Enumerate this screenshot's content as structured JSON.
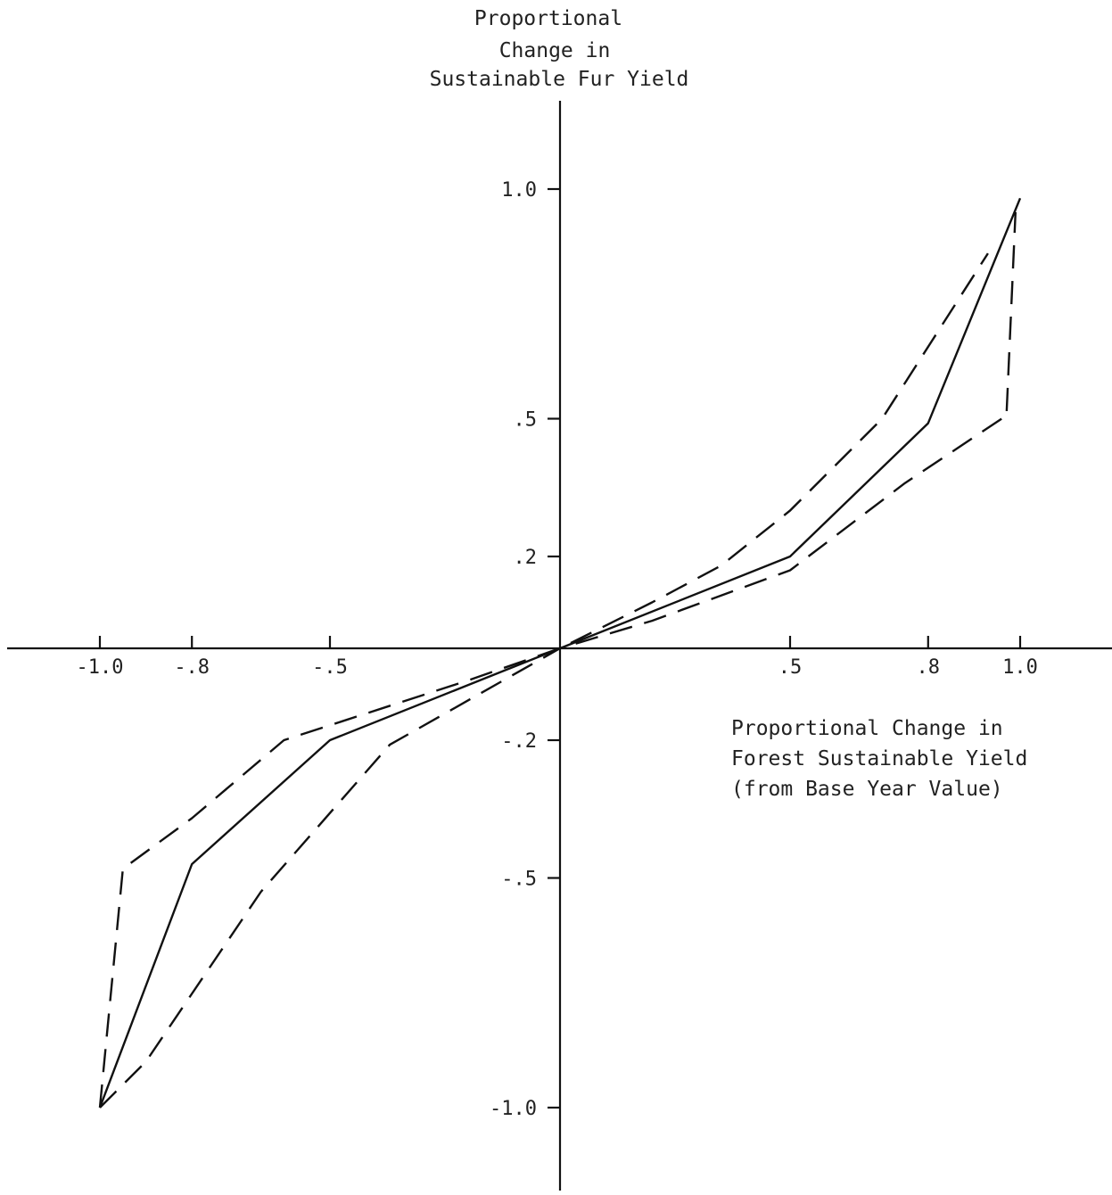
{
  "chart_data": {
    "type": "line",
    "ylabel_lines": [
      "Proportional",
      "Change in",
      "Sustainable Fur Yield"
    ],
    "xlabel_lines": [
      "Proportional Change in",
      "Forest Sustainable Yield",
      "(from Base Year Value)"
    ],
    "x_ticks": [
      {
        "value": -1.0,
        "label": "-1.0"
      },
      {
        "value": -0.8,
        "label": "-.8"
      },
      {
        "value": -0.5,
        "label": "-.5"
      },
      {
        "value": 0.5,
        "label": ".5"
      },
      {
        "value": 0.8,
        "label": ".8"
      },
      {
        "value": 1.0,
        "label": "1.0"
      }
    ],
    "y_ticks": [
      {
        "value": 1.0,
        "label": "1.0"
      },
      {
        "value": 0.5,
        "label": ".5"
      },
      {
        "value": 0.2,
        "label": ".2"
      },
      {
        "value": -0.2,
        "label": "-.2"
      },
      {
        "value": -0.5,
        "label": "-.5"
      },
      {
        "value": -1.0,
        "label": "-1.0"
      }
    ],
    "xlim": [
      -1.2,
      1.2
    ],
    "ylim": [
      -1.2,
      1.2
    ],
    "grid": false,
    "series": [
      {
        "style": "solid",
        "points": [
          [
            -1.0,
            -1.0
          ],
          [
            -0.8,
            -0.47
          ],
          [
            -0.5,
            -0.2
          ],
          [
            0.0,
            0.0
          ],
          [
            0.5,
            0.2
          ],
          [
            0.8,
            0.49
          ],
          [
            1.0,
            0.98
          ]
        ]
      },
      {
        "style": "dashed",
        "points": [
          [
            -1.0,
            -1.0
          ],
          [
            -0.95,
            -0.48
          ],
          [
            -0.8,
            -0.37
          ],
          [
            -0.6,
            -0.2
          ],
          [
            -0.2,
            -0.07
          ],
          [
            0.0,
            0.0
          ],
          [
            0.2,
            0.1
          ],
          [
            0.35,
            0.18
          ],
          [
            0.5,
            0.3
          ],
          [
            0.7,
            0.5
          ],
          [
            0.93,
            0.86
          ]
        ]
      },
      {
        "style": "dashed",
        "points": [
          [
            -1.0,
            -1.0
          ],
          [
            -0.9,
            -0.9
          ],
          [
            -0.65,
            -0.53
          ],
          [
            -0.37,
            -0.21
          ],
          [
            0.0,
            0.0
          ],
          [
            0.2,
            0.06
          ],
          [
            0.5,
            0.17
          ],
          [
            0.75,
            0.36
          ],
          [
            0.96,
            0.5
          ],
          [
            0.97,
            0.5
          ],
          [
            0.99,
            0.95
          ]
        ]
      }
    ]
  }
}
